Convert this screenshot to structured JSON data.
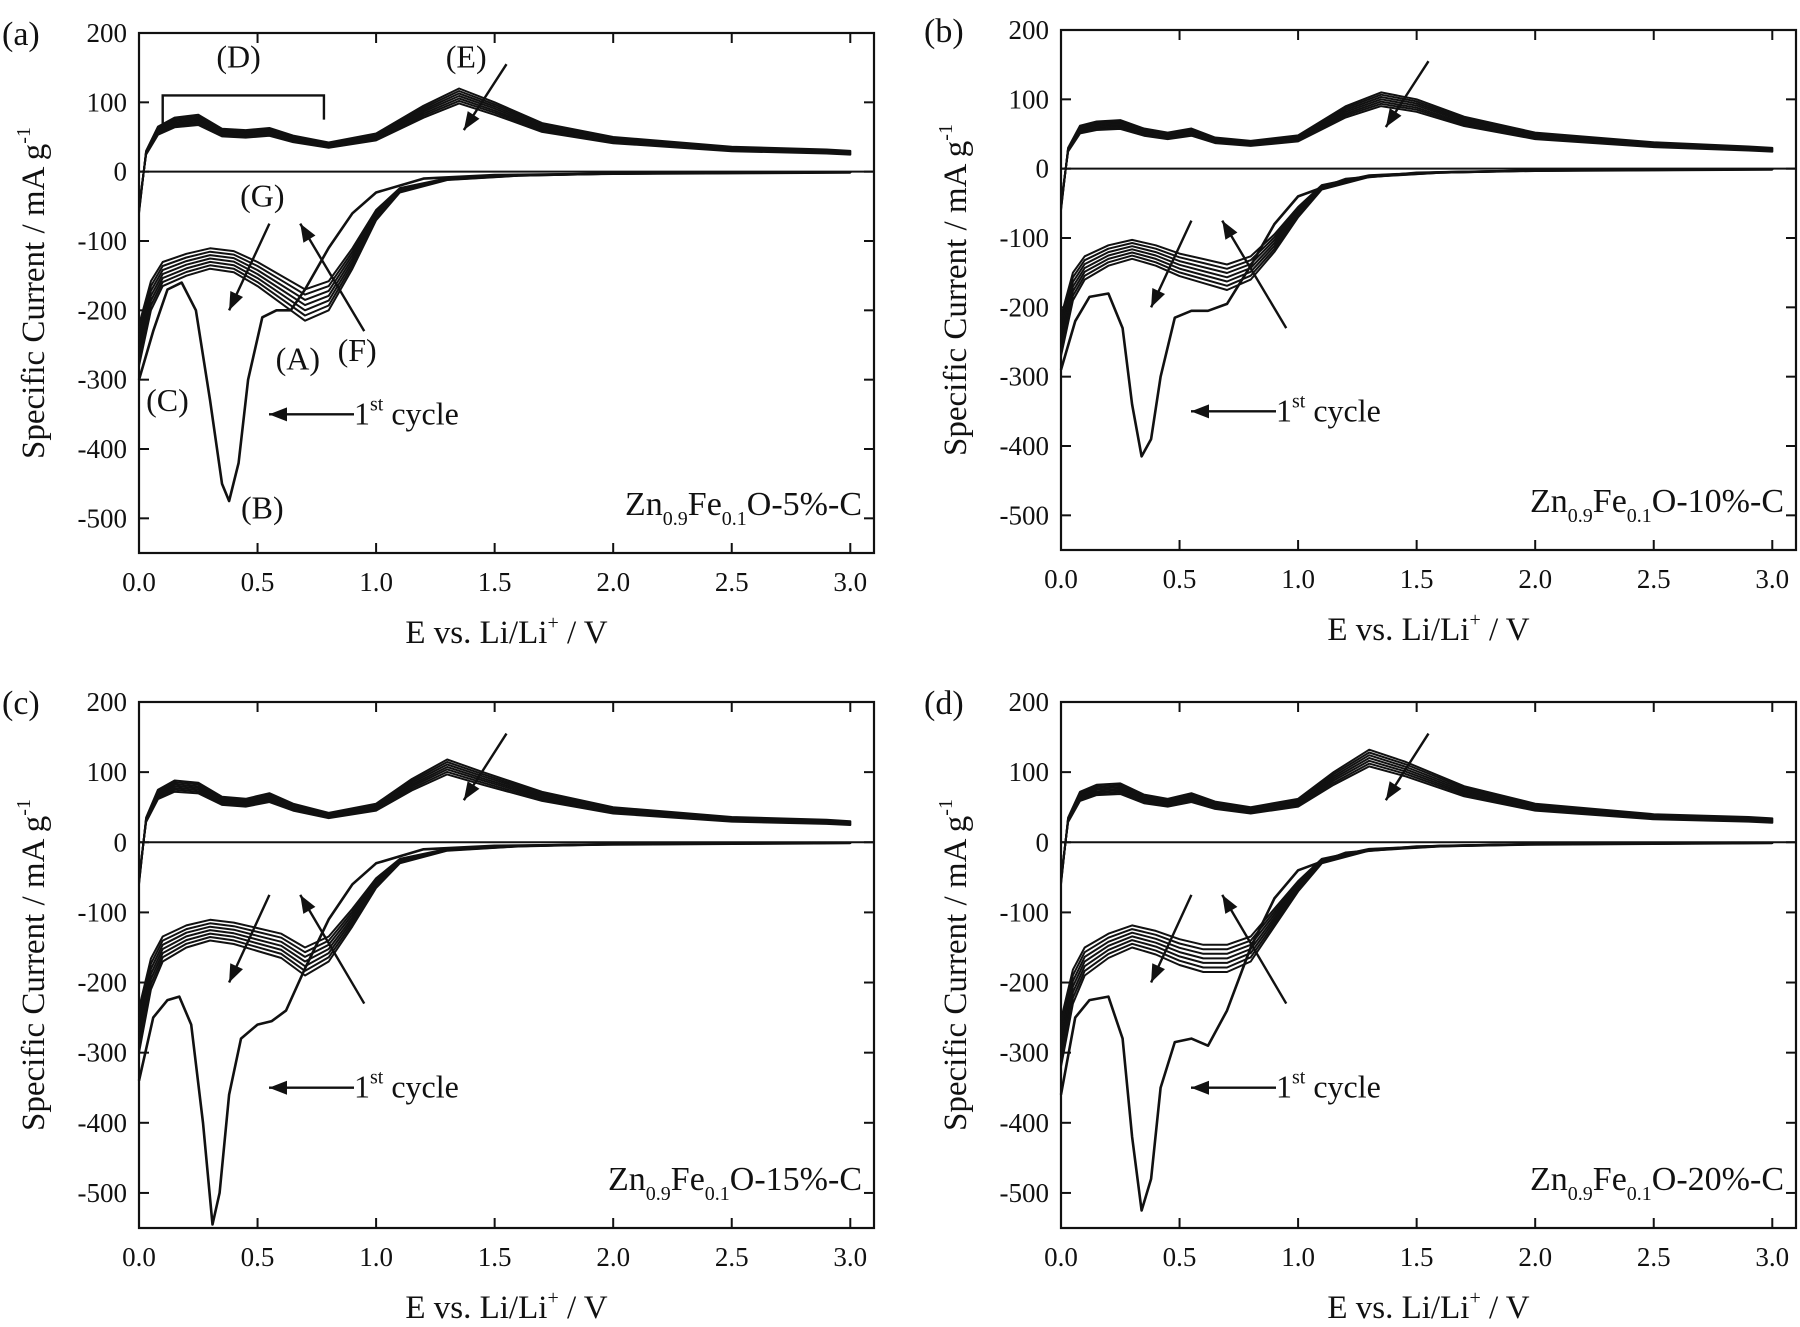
{
  "figure": {
    "panel_count": 4
  },
  "chart_data": [
    {
      "type": "line",
      "panel": "(a)",
      "sample_label": {
        "main_1": "Zn",
        "sub_1": "0.9",
        "main_2": "Fe",
        "sub_2": "0.1",
        "main_3": "O-5%-C"
      },
      "xlabel": {
        "main": "E vs. Li/Li",
        "sup": "+",
        "tail": " / V"
      },
      "ylabel": {
        "main": "Specific Current / mA g",
        "sup": "-1"
      },
      "xlim": [
        0.0,
        3.1
      ],
      "ylim": [
        -550,
        200
      ],
      "xticks": [
        "0.0",
        "0.5",
        "1.0",
        "1.5",
        "2.0",
        "2.5",
        "3.0"
      ],
      "yticks": [
        "200",
        "100",
        "0",
        "-100",
        "-200",
        "-300",
        "-400",
        "-500"
      ],
      "first_cycle_label": {
        "prefix": "1",
        "sup": "st",
        "text": " cycle"
      },
      "series": [
        {
          "name": "1st cycle cathodic",
          "x": [
            0.0,
            0.06,
            0.12,
            0.18,
            0.24,
            0.3,
            0.35,
            0.38,
            0.42,
            0.46,
            0.52,
            0.58,
            0.64,
            0.7,
            0.8,
            0.9,
            1.0,
            1.2,
            1.5,
            2.0,
            2.5,
            3.0
          ],
          "y": [
            -300,
            -230,
            -170,
            -160,
            -200,
            -330,
            -450,
            -475,
            -420,
            -300,
            -210,
            -200,
            -200,
            -170,
            -110,
            -60,
            -30,
            -10,
            -5,
            -3,
            -2,
            -1
          ]
        },
        {
          "name": "later cycles cathodic",
          "x": [
            0.0,
            0.05,
            0.1,
            0.2,
            0.3,
            0.4,
            0.5,
            0.6,
            0.7,
            0.8,
            0.9,
            1.0,
            1.1,
            1.3,
            1.6,
            2.0,
            2.5,
            3.0
          ],
          "y": [
            -280,
            -200,
            -165,
            -150,
            -140,
            -145,
            -165,
            -190,
            -215,
            -200,
            -140,
            -70,
            -30,
            -12,
            -6,
            -3,
            -2,
            -1
          ]
        },
        {
          "name": "anodic",
          "x": [
            0.0,
            0.03,
            0.08,
            0.15,
            0.25,
            0.35,
            0.45,
            0.55,
            0.65,
            0.8,
            1.0,
            1.2,
            1.35,
            1.5,
            1.7,
            2.0,
            2.5,
            2.9,
            3.0
          ],
          "y": [
            -60,
            30,
            65,
            78,
            82,
            62,
            60,
            63,
            52,
            42,
            55,
            95,
            120,
            100,
            70,
            50,
            36,
            32,
            30
          ]
        }
      ],
      "annotations": [
        "(A)",
        "(B)",
        "(C)",
        "(D)",
        "(E)",
        "(F)",
        "(G)"
      ]
    },
    {
      "type": "line",
      "panel": "(b)",
      "sample_label": {
        "main_1": "Zn",
        "sub_1": "0.9",
        "main_2": "Fe",
        "sub_2": "0.1",
        "main_3": "O-10%-C"
      },
      "xlabel": {
        "main": "E vs. Li/Li",
        "sup": "+",
        "tail": " / V"
      },
      "ylabel": {
        "main": "Specific Current / mA g",
        "sup": "-1"
      },
      "xlim": [
        0.0,
        3.1
      ],
      "ylim": [
        -550,
        200
      ],
      "xticks": [
        "0.0",
        "0.5",
        "1.0",
        "1.5",
        "2.0",
        "2.5",
        "3.0"
      ],
      "yticks": [
        "200",
        "100",
        "0",
        "-100",
        "-200",
        "-300",
        "-400",
        "-500"
      ],
      "first_cycle_label": {
        "prefix": "1",
        "sup": "st",
        "text": " cycle"
      },
      "series": [
        {
          "name": "1st cycle cathodic",
          "x": [
            0.0,
            0.06,
            0.12,
            0.2,
            0.26,
            0.3,
            0.34,
            0.38,
            0.42,
            0.48,
            0.55,
            0.62,
            0.7,
            0.8,
            0.9,
            1.0,
            1.2,
            1.5,
            2.0,
            2.5,
            3.0
          ],
          "y": [
            -290,
            -220,
            -185,
            -180,
            -230,
            -340,
            -415,
            -390,
            -300,
            -215,
            -205,
            -205,
            -195,
            -140,
            -80,
            -40,
            -15,
            -6,
            -3,
            -2,
            -1
          ]
        },
        {
          "name": "later cycles cathodic",
          "x": [
            0.0,
            0.05,
            0.1,
            0.2,
            0.3,
            0.4,
            0.5,
            0.6,
            0.7,
            0.8,
            0.9,
            1.0,
            1.1,
            1.3,
            1.6,
            2.0,
            2.5,
            3.0
          ],
          "y": [
            -270,
            -190,
            -160,
            -140,
            -130,
            -140,
            -155,
            -165,
            -175,
            -160,
            -120,
            -70,
            -30,
            -12,
            -6,
            -3,
            -2,
            -1
          ]
        },
        {
          "name": "anodic",
          "x": [
            0.0,
            0.03,
            0.08,
            0.15,
            0.25,
            0.35,
            0.45,
            0.55,
            0.65,
            0.8,
            1.0,
            1.2,
            1.35,
            1.5,
            1.7,
            2.0,
            2.5,
            2.9,
            3.0
          ],
          "y": [
            -60,
            30,
            62,
            68,
            70,
            58,
            52,
            58,
            45,
            40,
            48,
            90,
            110,
            100,
            75,
            52,
            38,
            32,
            30
          ]
        }
      ],
      "annotations": []
    },
    {
      "type": "line",
      "panel": "(c)",
      "sample_label": {
        "main_1": "Zn",
        "sub_1": "0.9",
        "main_2": "Fe",
        "sub_2": "0.1",
        "main_3": "O-15%-C"
      },
      "xlabel": {
        "main": "E vs. Li/Li",
        "sup": "+",
        "tail": " / V"
      },
      "ylabel": {
        "main": "Specific Current / mA g",
        "sup": "-1"
      },
      "xlim": [
        0.0,
        3.1
      ],
      "ylim": [
        -550,
        200
      ],
      "xticks": [
        "0.0",
        "0.5",
        "1.0",
        "1.5",
        "2.0",
        "2.5",
        "3.0"
      ],
      "yticks": [
        "200",
        "100",
        "0",
        "-100",
        "-200",
        "-300",
        "-400",
        "-500"
      ],
      "first_cycle_label": {
        "prefix": "1",
        "sup": "st",
        "text": " cycle"
      },
      "series": [
        {
          "name": "1st cycle cathodic",
          "x": [
            0.0,
            0.06,
            0.12,
            0.17,
            0.22,
            0.27,
            0.31,
            0.34,
            0.38,
            0.43,
            0.5,
            0.56,
            0.62,
            0.7,
            0.8,
            0.9,
            1.0,
            1.2,
            1.5,
            2.0,
            2.5,
            3.0
          ],
          "y": [
            -340,
            -250,
            -225,
            -220,
            -260,
            -400,
            -545,
            -500,
            -360,
            -280,
            -260,
            -255,
            -240,
            -180,
            -110,
            -60,
            -30,
            -10,
            -5,
            -3,
            -2,
            -1
          ]
        },
        {
          "name": "later cycles cathodic",
          "x": [
            0.0,
            0.05,
            0.1,
            0.2,
            0.3,
            0.4,
            0.5,
            0.6,
            0.7,
            0.8,
            0.9,
            1.0,
            1.1,
            1.3,
            1.6,
            2.0,
            2.5,
            3.0
          ],
          "y": [
            -300,
            -210,
            -170,
            -150,
            -140,
            -145,
            -155,
            -165,
            -190,
            -170,
            -120,
            -65,
            -30,
            -12,
            -6,
            -3,
            -2,
            -1
          ]
        },
        {
          "name": "anodic",
          "x": [
            0.0,
            0.03,
            0.08,
            0.15,
            0.25,
            0.35,
            0.45,
            0.55,
            0.65,
            0.8,
            1.0,
            1.15,
            1.3,
            1.45,
            1.7,
            2.0,
            2.5,
            2.9,
            3.0
          ],
          "y": [
            -60,
            35,
            75,
            88,
            85,
            65,
            62,
            70,
            55,
            42,
            55,
            90,
            118,
            100,
            72,
            50,
            36,
            32,
            30
          ]
        }
      ],
      "annotations": []
    },
    {
      "type": "line",
      "panel": "(d)",
      "sample_label": {
        "main_1": "Zn",
        "sub_1": "0.9",
        "main_2": "Fe",
        "sub_2": "0.1",
        "main_3": "O-20%-C"
      },
      "xlabel": {
        "main": "E vs. Li/Li",
        "sup": "+",
        "tail": " / V"
      },
      "ylabel": {
        "main": "Specific Current / mA g",
        "sup": "-1"
      },
      "xlim": [
        0.0,
        3.1
      ],
      "ylim": [
        -550,
        200
      ],
      "xticks": [
        "0.0",
        "0.5",
        "1.0",
        "1.5",
        "2.0",
        "2.5",
        "3.0"
      ],
      "yticks": [
        "200",
        "100",
        "0",
        "-100",
        "-200",
        "-300",
        "-400",
        "-500"
      ],
      "first_cycle_label": {
        "prefix": "1",
        "sup": "st",
        "text": " cycle"
      },
      "series": [
        {
          "name": "1st cycle cathodic",
          "x": [
            0.0,
            0.06,
            0.12,
            0.2,
            0.26,
            0.3,
            0.34,
            0.38,
            0.42,
            0.48,
            0.55,
            0.62,
            0.7,
            0.8,
            0.9,
            1.0,
            1.2,
            1.5,
            2.0,
            2.5,
            3.0
          ],
          "y": [
            -360,
            -250,
            -225,
            -220,
            -280,
            -420,
            -525,
            -480,
            -350,
            -285,
            -280,
            -290,
            -240,
            -150,
            -80,
            -40,
            -15,
            -6,
            -3,
            -2,
            -1
          ]
        },
        {
          "name": "later cycles cathodic",
          "x": [
            0.0,
            0.05,
            0.1,
            0.2,
            0.3,
            0.4,
            0.5,
            0.6,
            0.7,
            0.8,
            0.9,
            1.0,
            1.1,
            1.3,
            1.6,
            2.0,
            2.5,
            3.0
          ],
          "y": [
            -320,
            -230,
            -190,
            -165,
            -150,
            -160,
            -175,
            -185,
            -185,
            -170,
            -120,
            -70,
            -30,
            -12,
            -6,
            -3,
            -2,
            -1
          ]
        },
        {
          "name": "anodic",
          "x": [
            0.0,
            0.03,
            0.08,
            0.15,
            0.25,
            0.35,
            0.45,
            0.55,
            0.65,
            0.8,
            1.0,
            1.15,
            1.3,
            1.45,
            1.7,
            2.0,
            2.5,
            2.9,
            3.0
          ],
          "y": [
            -60,
            35,
            72,
            82,
            84,
            68,
            62,
            70,
            58,
            50,
            62,
            100,
            132,
            115,
            80,
            55,
            40,
            36,
            34
          ]
        }
      ],
      "annotations": []
    }
  ]
}
